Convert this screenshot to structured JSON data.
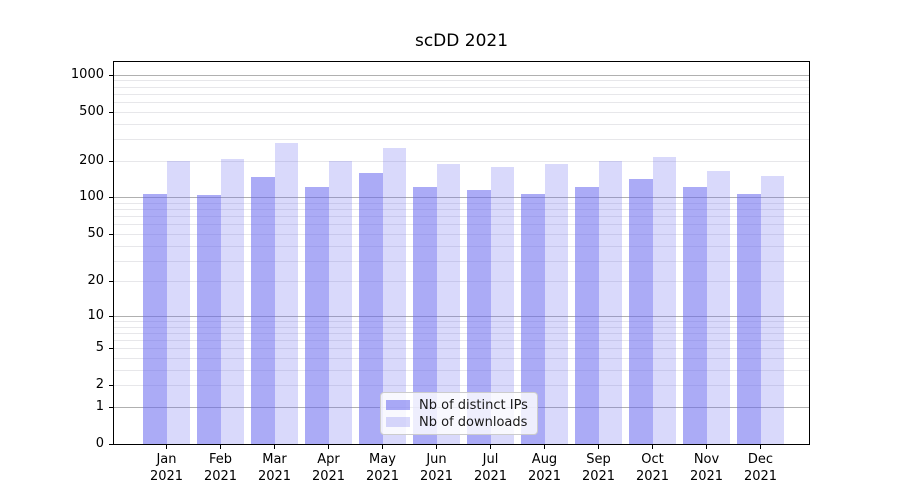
{
  "figure": {
    "title": "scDD 2021"
  },
  "chart_data": {
    "type": "bar",
    "title": "scDD 2021",
    "categories": [
      "Jan 2021",
      "Feb 2021",
      "Mar 2021",
      "Apr 2021",
      "May 2021",
      "Jun 2021",
      "Jul 2021",
      "Aug 2021",
      "Sep 2021",
      "Oct 2021",
      "Nov 2021",
      "Dec 2021"
    ],
    "month_line1": [
      "Jan",
      "Feb",
      "Mar",
      "Apr",
      "May",
      "Jun",
      "Jul",
      "Aug",
      "Sep",
      "Oct",
      "Nov",
      "Dec"
    ],
    "year_line2": "2021",
    "series": [
      {
        "name": "Nb of distinct IPs",
        "color": "rgba(102,102,238,0.55)",
        "values": [
          106,
          104,
          147,
          121,
          157,
          122,
          114,
          107,
          121,
          142,
          121,
          107
        ]
      },
      {
        "name": "Nb of downloads",
        "color": "rgba(102,102,238,0.25)",
        "values": [
          197,
          205,
          278,
          200,
          252,
          187,
          178,
          188,
          197,
          216,
          166,
          151
        ]
      }
    ],
    "yscale": "symlog (log10 of 1+value)",
    "yticks": [
      0,
      1,
      2,
      5,
      10,
      20,
      50,
      100,
      200,
      500,
      1000
    ],
    "ytick_labels": [
      "0",
      "1",
      "2",
      "5",
      "10",
      "20",
      "50",
      "100",
      "200",
      "500",
      "1000"
    ],
    "minor_gridlines": [
      2,
      3,
      4,
      5,
      6,
      7,
      8,
      9,
      20,
      30,
      40,
      50,
      60,
      70,
      80,
      90,
      200,
      300,
      400,
      500,
      600,
      700,
      800,
      900
    ],
    "major_gridlines": [
      1,
      10,
      100,
      1000
    ],
    "ylim": [
      0,
      1270
    ],
    "xlabel": "",
    "ylabel": "",
    "grid": true,
    "legend_position": "inside-bottom-center",
    "colors": {
      "major_grid": "#b0b0b0",
      "minor_grid": "#e7e7ea",
      "spine": "#000000",
      "background": "#ffffff"
    }
  }
}
